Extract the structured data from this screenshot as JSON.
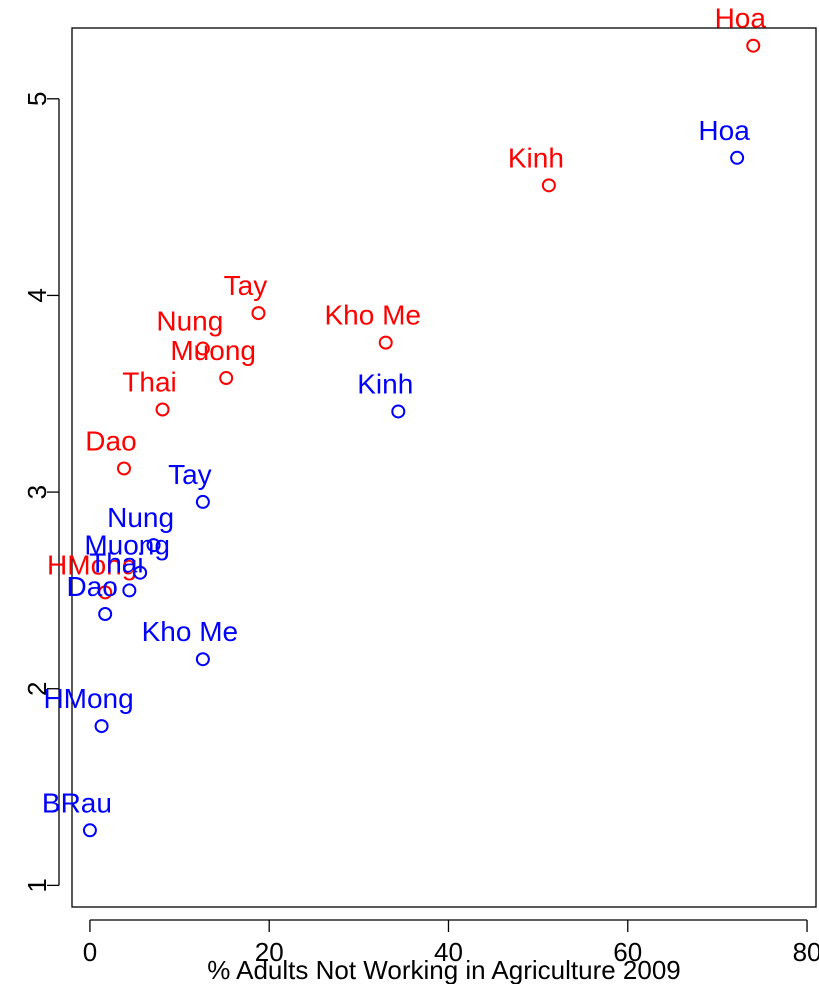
{
  "chart_data": {
    "type": "scatter",
    "title": "",
    "xlabel": "% Adults Not Working in Agriculture 2009",
    "ylabel": "",
    "xlim": [
      -2,
      81
    ],
    "ylim": [
      0.89,
      5.36
    ],
    "x_ticks": [
      0,
      20,
      40,
      60,
      80
    ],
    "y_ticks": [
      1,
      2,
      3,
      4,
      5
    ],
    "grid": false,
    "legend": "none",
    "series": [
      {
        "color": "#ff0000",
        "points": [
          {
            "label": "Hoa",
            "x": 74.0,
            "y": 5.27
          },
          {
            "label": "Kinh",
            "x": 51.2,
            "y": 4.56
          },
          {
            "label": "Tay",
            "x": 18.8,
            "y": 3.91
          },
          {
            "label": "Kho Me",
            "x": 33.0,
            "y": 3.76
          },
          {
            "label": "Nung",
            "x": 12.6,
            "y": 3.73
          },
          {
            "label": "Muong",
            "x": 15.2,
            "y": 3.58
          },
          {
            "label": "Thai",
            "x": 8.1,
            "y": 3.42
          },
          {
            "label": "Dao",
            "x": 3.8,
            "y": 3.12
          },
          {
            "label": "HMong",
            "x": 1.7,
            "y": 2.49
          }
        ]
      },
      {
        "color": "#0000ff",
        "points": [
          {
            "label": "Hoa",
            "x": 72.2,
            "y": 4.7
          },
          {
            "label": "Kinh",
            "x": 34.4,
            "y": 3.41
          },
          {
            "label": "Tay",
            "x": 12.6,
            "y": 2.95
          },
          {
            "label": "Nung",
            "x": 7.1,
            "y": 2.73
          },
          {
            "label": "Muong",
            "x": 5.6,
            "y": 2.59
          },
          {
            "label": "Thai",
            "x": 4.4,
            "y": 2.5
          },
          {
            "label": "Dao",
            "x": 1.7,
            "y": 2.38
          },
          {
            "label": "Kho Me",
            "x": 12.6,
            "y": 2.15
          },
          {
            "label": "HMong",
            "x": 1.3,
            "y": 1.81
          },
          {
            "label": "BRau",
            "x": 0.0,
            "y": 1.28
          }
        ]
      }
    ]
  }
}
